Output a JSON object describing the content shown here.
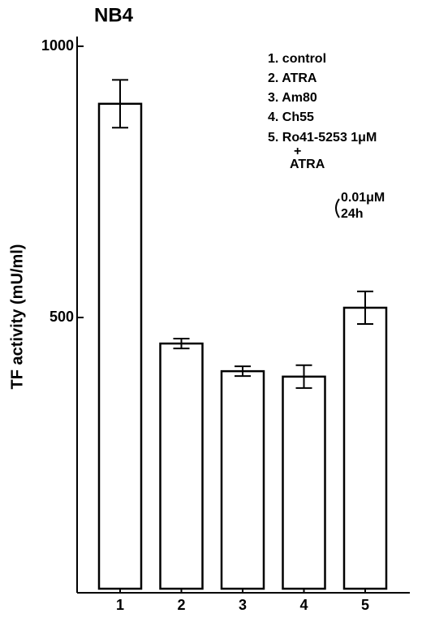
{
  "chart_data": {
    "type": "bar",
    "title": "NB4",
    "y_label": "TF activity (mU/ml)",
    "categories": [
      "1",
      "2",
      "3",
      "4",
      "5"
    ],
    "values": [
      894,
      452,
      401,
      391,
      518
    ],
    "errors": [
      44,
      9,
      9,
      21,
      30
    ],
    "color": "#ffffff",
    "ylim": [
      0,
      1000
    ],
    "yticks": [
      500,
      1000
    ],
    "legend_lines": [
      "1. control",
      "2. ATRA",
      "3. Am80",
      "4. Ch55",
      "5. Ro41-5253 1μM",
      "+",
      "ATRA",
      "0.01μM",
      "24h"
    ]
  }
}
